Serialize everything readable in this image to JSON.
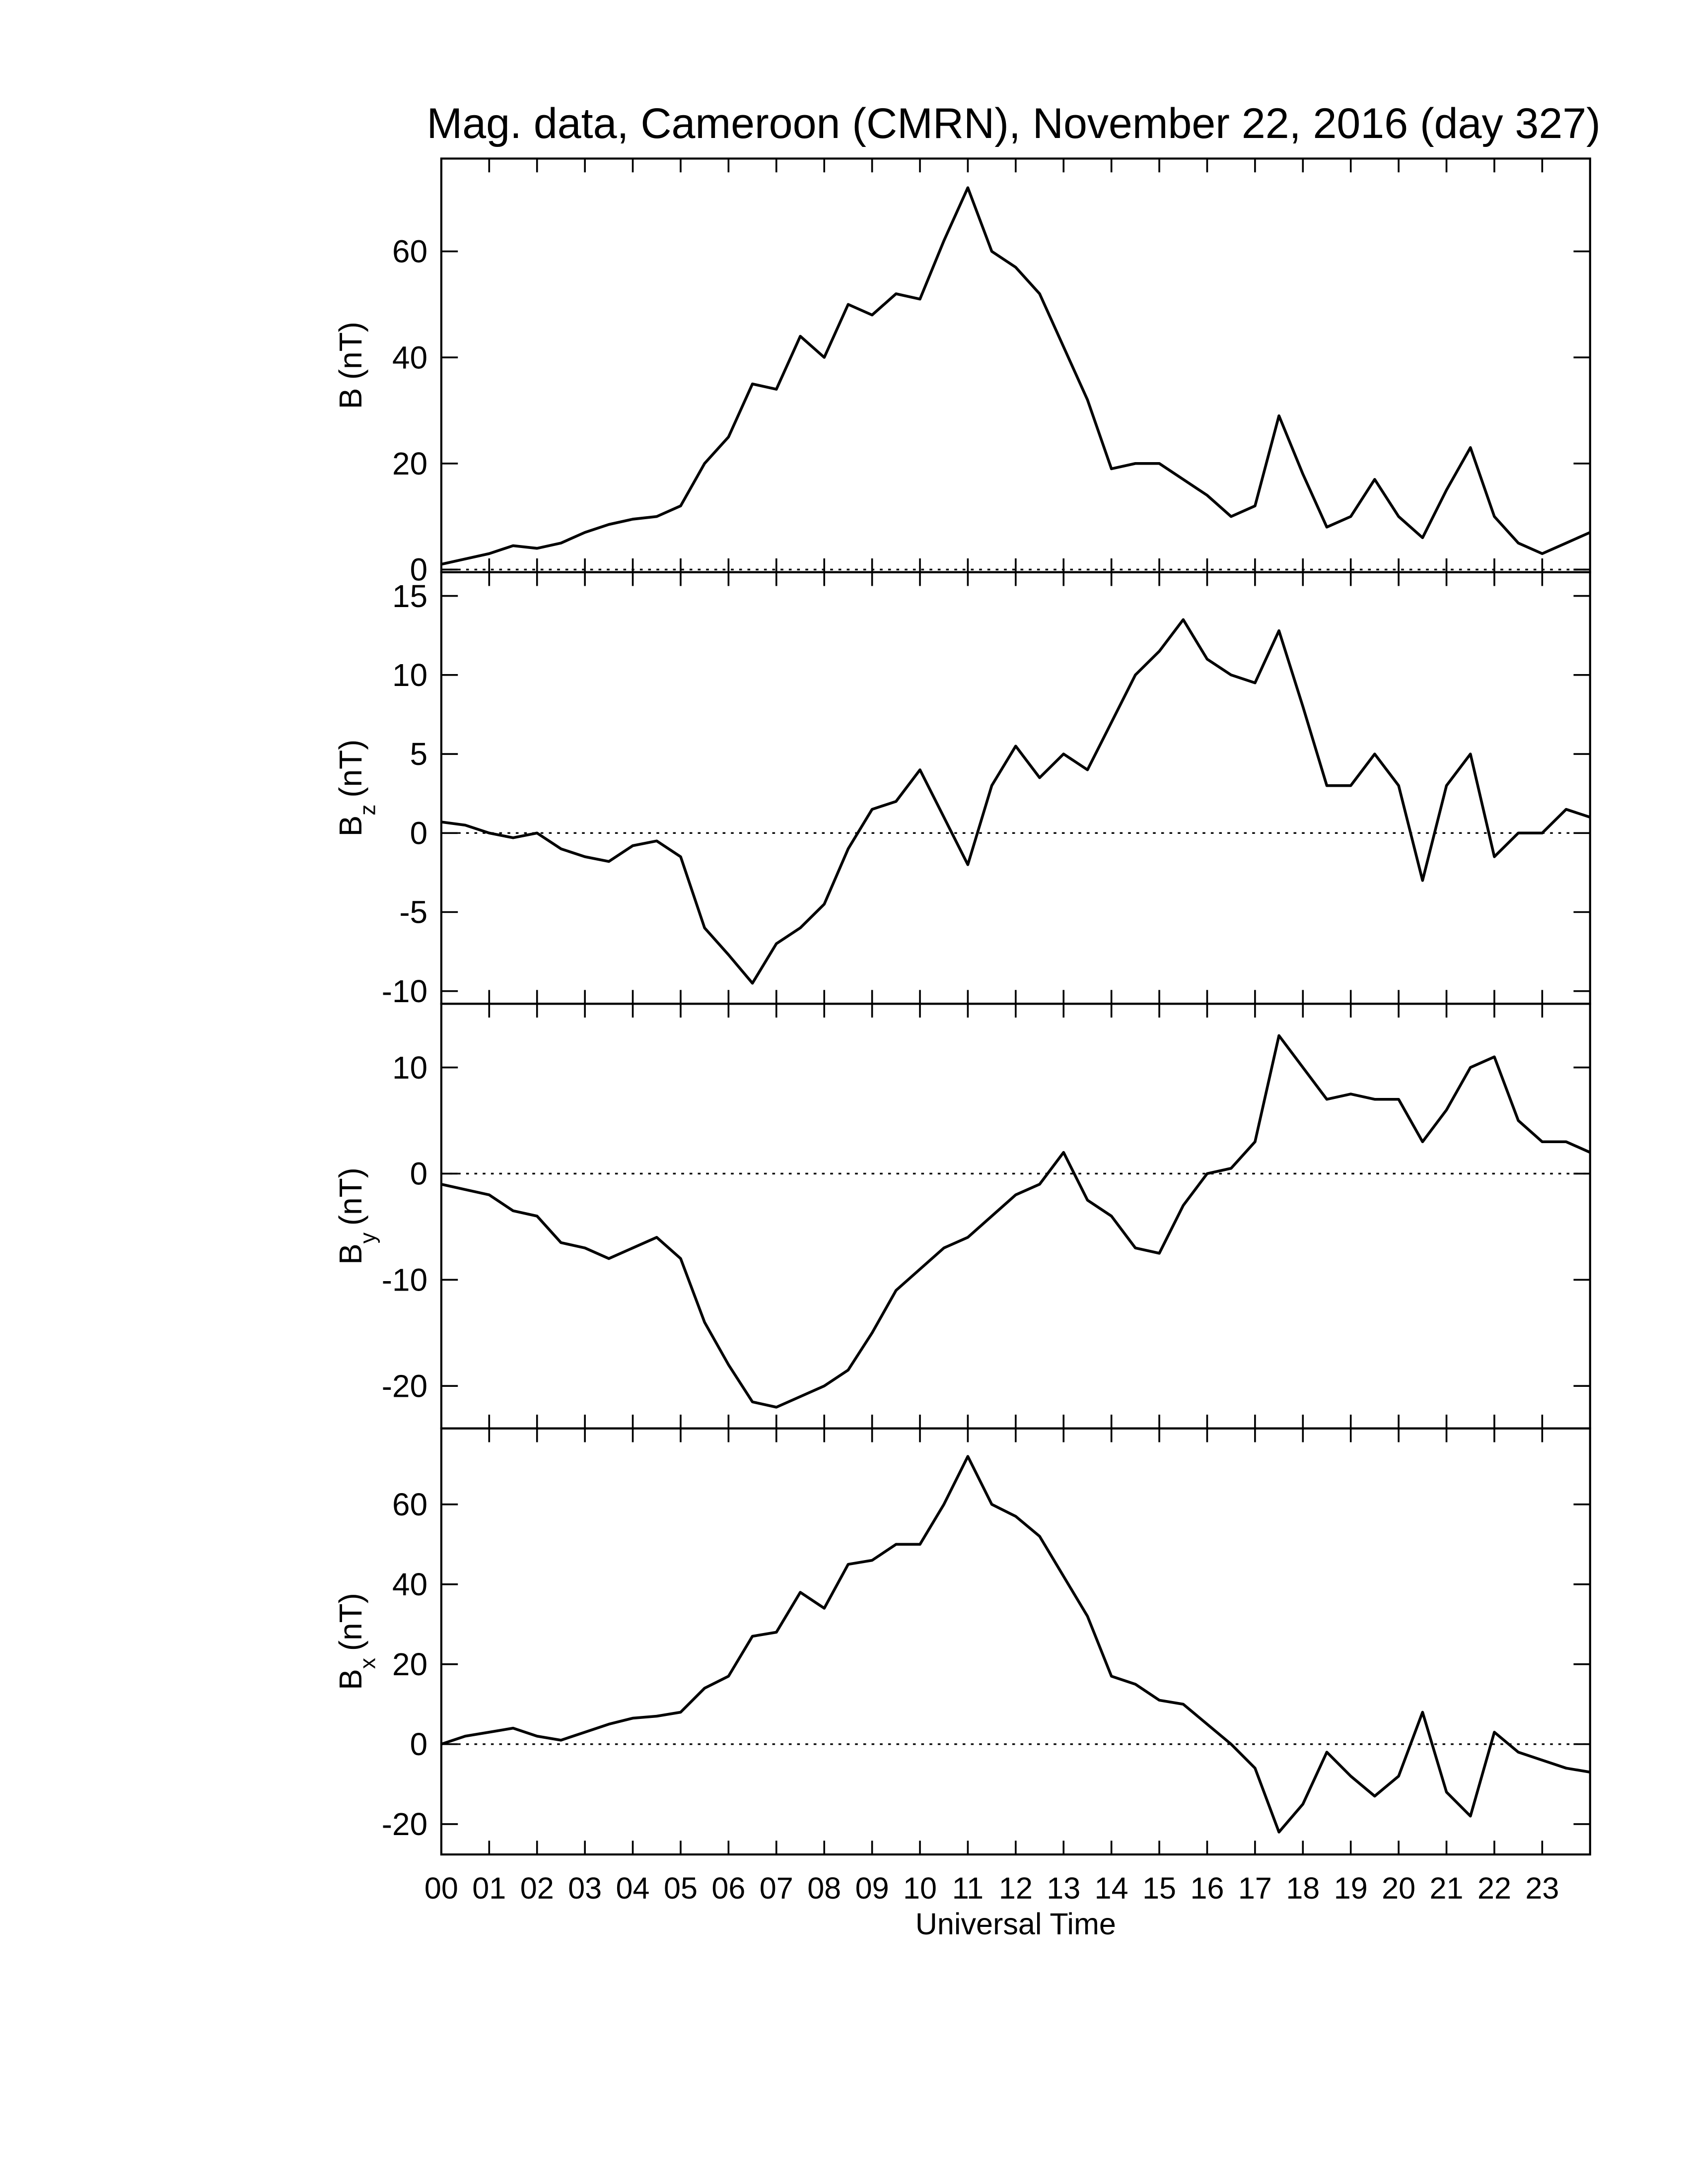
{
  "chart_data": [
    {
      "type": "line",
      "title": "Mag. data, Cameroon (CMRN), November 22, 2016 (day 327)",
      "ylabel": {
        "symbol": "B",
        "unit": "(nT)"
      },
      "x": [
        0,
        0.5,
        1,
        1.5,
        2,
        2.5,
        3,
        3.5,
        4,
        4.5,
        5,
        5.5,
        6,
        6.5,
        7,
        7.5,
        8,
        8.5,
        9,
        9.5,
        10,
        10.5,
        11,
        11.5,
        12,
        12.5,
        13,
        13.5,
        14,
        14.5,
        15,
        15.5,
        16,
        16.5,
        17,
        17.5,
        18,
        18.5,
        19,
        19.5,
        20,
        20.5,
        21,
        21.5,
        22,
        22.5,
        23,
        23.5,
        24
      ],
      "values": [
        1,
        2,
        3,
        4.5,
        4,
        5,
        7,
        8.5,
        9.5,
        10,
        12,
        20,
        25,
        35,
        34,
        44,
        40,
        50,
        48,
        52,
        51,
        62,
        72,
        60,
        57,
        52,
        42,
        32,
        19,
        20,
        20,
        17,
        14,
        10,
        12,
        29,
        18,
        8,
        10,
        17,
        10,
        6,
        15,
        23,
        10,
        5,
        3,
        5,
        7
      ],
      "color": "#000000",
      "xlim": [
        0,
        24
      ],
      "ylim": [
        -0.5,
        77.5
      ],
      "yticks": [
        0,
        20,
        40,
        60
      ],
      "zero_line": true
    },
    {
      "type": "line",
      "ylabel": {
        "symbol": "B",
        "subscript": "z",
        "unit": "(nT)"
      },
      "x": [
        0,
        0.5,
        1,
        1.5,
        2,
        2.5,
        3,
        3.5,
        4,
        4.5,
        5,
        5.5,
        6,
        6.5,
        7,
        7.5,
        8,
        8.5,
        9,
        9.5,
        10,
        10.5,
        11,
        11.5,
        12,
        12.5,
        13,
        13.5,
        14,
        14.5,
        15,
        15.5,
        16,
        16.5,
        17,
        17.5,
        18,
        18.5,
        19,
        19.5,
        20,
        20.5,
        21,
        21.5,
        22,
        22.5,
        23,
        23.5,
        24
      ],
      "values": [
        0.7,
        0.5,
        0,
        -0.3,
        0,
        -1,
        -1.5,
        -1.8,
        -0.8,
        -0.5,
        -1.5,
        -6,
        -7.7,
        -9.5,
        -7,
        -6,
        -4.5,
        -1,
        1.5,
        2,
        4,
        1,
        -2,
        3,
        5.5,
        3.5,
        5,
        4,
        7,
        10,
        11.5,
        13.5,
        11,
        10,
        9.5,
        12.8,
        8,
        3,
        3,
        5,
        3,
        -3,
        3,
        5,
        -1.5,
        0,
        0,
        1.5,
        1
      ],
      "color": "#000000",
      "xlim": [
        0,
        24
      ],
      "ylim": [
        -10.8,
        16.5
      ],
      "yticks": [
        -10,
        -5,
        0,
        5,
        10,
        15
      ],
      "zero_line": true
    },
    {
      "type": "line",
      "ylabel": {
        "symbol": "B",
        "subscript": "y",
        "unit": "(nT)"
      },
      "x": [
        0,
        0.5,
        1,
        1.5,
        2,
        2.5,
        3,
        3.5,
        4,
        4.5,
        5,
        5.5,
        6,
        6.5,
        7,
        7.5,
        8,
        8.5,
        9,
        9.5,
        10,
        10.5,
        11,
        11.5,
        12,
        12.5,
        13,
        13.5,
        14,
        14.5,
        15,
        15.5,
        16,
        16.5,
        17,
        17.5,
        18,
        18.5,
        19,
        19.5,
        20,
        20.5,
        21,
        21.5,
        22,
        22.5,
        23,
        23.5,
        24
      ],
      "values": [
        -1,
        -1.5,
        -2,
        -3.5,
        -4,
        -6.5,
        -7,
        -8,
        -7,
        -6,
        -8,
        -14,
        -18,
        -21.5,
        -22,
        -21,
        -20,
        -18.5,
        -15,
        -11,
        -9,
        -7,
        -6,
        -4,
        -2,
        -1,
        2,
        -2.5,
        -4,
        -7,
        -7.5,
        -3,
        0,
        0.5,
        3,
        13,
        10,
        7,
        7.5,
        7,
        7,
        3,
        6,
        10,
        11,
        5,
        3,
        3,
        2
      ],
      "color": "#000000",
      "xlim": [
        0,
        24
      ],
      "ylim": [
        -24,
        16
      ],
      "yticks": [
        -20,
        -10,
        0,
        10
      ],
      "zero_line": true
    },
    {
      "type": "line",
      "ylabel": {
        "symbol": "B",
        "subscript": "x",
        "unit": "(nT)"
      },
      "xlabel": "Universal Time",
      "x": [
        0,
        0.5,
        1,
        1.5,
        2,
        2.5,
        3,
        3.5,
        4,
        4.5,
        5,
        5.5,
        6,
        6.5,
        7,
        7.5,
        8,
        8.5,
        9,
        9.5,
        10,
        10.5,
        11,
        11.5,
        12,
        12.5,
        13,
        13.5,
        14,
        14.5,
        15,
        15.5,
        16,
        16.5,
        17,
        17.5,
        18,
        18.5,
        19,
        19.5,
        20,
        20.5,
        21,
        21.5,
        22,
        22.5,
        23,
        23.5,
        24
      ],
      "values": [
        0,
        2,
        3,
        4,
        2,
        1,
        3,
        5,
        6.5,
        7,
        8,
        14,
        17,
        27,
        28,
        38,
        34,
        45,
        46,
        50,
        50,
        60,
        72,
        60,
        57,
        52,
        42,
        32,
        17,
        15,
        11,
        10,
        5,
        0,
        -6,
        -22,
        -15,
        -2,
        -8,
        -13,
        -8,
        8,
        -12,
        -18,
        3,
        -2,
        -4,
        -6,
        -7
      ],
      "color": "#000000",
      "xlim": [
        0,
        24
      ],
      "ylim": [
        -27.6,
        79
      ],
      "yticks": [
        -20,
        0,
        20,
        40,
        60
      ],
      "zero_line": true,
      "xticks": [
        {
          "value": 0,
          "label": "00"
        },
        {
          "value": 1,
          "label": "01"
        },
        {
          "value": 2,
          "label": "02"
        },
        {
          "value": 3,
          "label": "03"
        },
        {
          "value": 4,
          "label": "04"
        },
        {
          "value": 5,
          "label": "05"
        },
        {
          "value": 6,
          "label": "06"
        },
        {
          "value": 7,
          "label": "07"
        },
        {
          "value": 8,
          "label": "08"
        },
        {
          "value": 9,
          "label": "09"
        },
        10,
        11,
        12,
        13,
        14,
        15,
        16,
        17,
        18,
        19,
        20,
        21,
        22,
        23
      ]
    }
  ]
}
